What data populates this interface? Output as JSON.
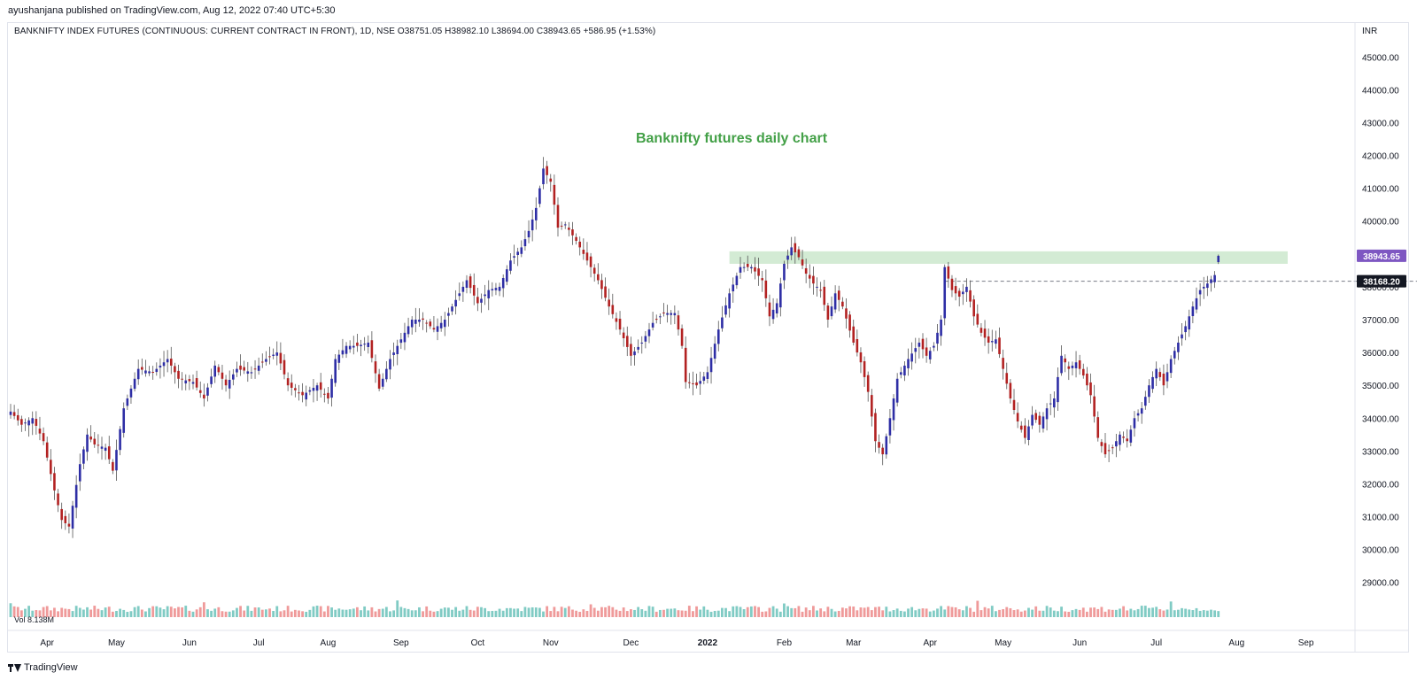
{
  "header": {
    "published": "ayushanjana published on TradingView.com, Aug 12, 2022 07:40 UTC+5:30"
  },
  "legend": {
    "text": "BANKNIFTY INDEX FUTURES (CONTINUOUS: CURRENT CONTRACT IN FRONT), 1D, NSE  O38751.05  H38982.10  L38694.00  C38943.65  +586.95 (+1.53%)"
  },
  "footer": {
    "brand": "TradingView"
  },
  "chart_data": {
    "type": "candlestick",
    "title": "Banknifty futures daily chart",
    "currency_label": "INR",
    "ylim": [
      28400,
      45600
    ],
    "y_ticks": [
      29000,
      30000,
      31000,
      32000,
      33000,
      34000,
      35000,
      36000,
      37000,
      38000,
      39000,
      40000,
      41000,
      42000,
      43000,
      44000,
      45000
    ],
    "y_tick_labels": [
      "29000.00",
      "30000.00",
      "31000.00",
      "32000.00",
      "33000.00",
      "34000.00",
      "35000.00",
      "36000.00",
      "37000.00",
      "38000.00",
      "39000.00",
      "40000.00",
      "41000.00",
      "42000.00",
      "43000.00",
      "44000.00",
      "45000.00"
    ],
    "x_labels": [
      "Apr",
      "May",
      "Jun",
      "Jul",
      "Aug",
      "Sep",
      "Oct",
      "Nov",
      "Dec",
      "2022",
      "Feb",
      "Mar",
      "Apr",
      "May",
      "Jun",
      "Jul",
      "Aug",
      "Sep"
    ],
    "x_label_bar_index": [
      10,
      29,
      49,
      68,
      87,
      107,
      128,
      148,
      170,
      191,
      212,
      231,
      252,
      272,
      293,
      314,
      336,
      355
    ],
    "volume_label": "Vol  8.138M",
    "last_price": {
      "value": 38943.65,
      "label": "38943.65",
      "color": "#7e57c2"
    },
    "crosshair_price": {
      "value": 38168.2,
      "label": "38168.20"
    },
    "resistance_zone": {
      "low": 38700,
      "high": 39080,
      "start_bar": 197,
      "end_bar": 350,
      "color": "#c8e6c9"
    },
    "crosshair_level": {
      "value": 38168.2,
      "start_bar": 256
    },
    "colors": {
      "up": "#2e2ea5",
      "down": "#b22222",
      "vol_up": "#80cbc4",
      "vol_down": "#ef9a9a",
      "title": "#43a047"
    },
    "anchors": [
      [
        0,
        34200
      ],
      [
        3,
        33800
      ],
      [
        6,
        34000
      ],
      [
        9,
        33300
      ],
      [
        12,
        31800
      ],
      [
        14,
        30900
      ],
      [
        16,
        30700
      ],
      [
        19,
        32600
      ],
      [
        21,
        33500
      ],
      [
        23,
        33200
      ],
      [
        26,
        33100
      ],
      [
        28,
        32400
      ],
      [
        31,
        34300
      ],
      [
        35,
        35500
      ],
      [
        39,
        35400
      ],
      [
        43,
        35800
      ],
      [
        46,
        35200
      ],
      [
        50,
        35100
      ],
      [
        53,
        34600
      ],
      [
        56,
        35600
      ],
      [
        59,
        35000
      ],
      [
        62,
        35500
      ],
      [
        66,
        35400
      ],
      [
        70,
        35800
      ],
      [
        73,
        36000
      ],
      [
        76,
        35000
      ],
      [
        80,
        34700
      ],
      [
        84,
        35000
      ],
      [
        87,
        34600
      ],
      [
        89,
        35800
      ],
      [
        92,
        36200
      ],
      [
        95,
        36200
      ],
      [
        98,
        36300
      ],
      [
        101,
        34900
      ],
      [
        104,
        35800
      ],
      [
        107,
        36400
      ],
      [
        110,
        37000
      ],
      [
        113,
        37000
      ],
      [
        116,
        36700
      ],
      [
        119,
        37000
      ],
      [
        122,
        37600
      ],
      [
        125,
        38200
      ],
      [
        128,
        37500
      ],
      [
        131,
        37900
      ],
      [
        134,
        38000
      ],
      [
        137,
        38800
      ],
      [
        140,
        39200
      ],
      [
        142,
        39700
      ],
      [
        144,
        40400
      ],
      [
        146,
        41600
      ],
      [
        148,
        41200
      ],
      [
        150,
        39800
      ],
      [
        152,
        39900
      ],
      [
        155,
        39400
      ],
      [
        158,
        38800
      ],
      [
        161,
        38200
      ],
      [
        164,
        37400
      ],
      [
        167,
        36700
      ],
      [
        170,
        35900
      ],
      [
        173,
        36300
      ],
      [
        176,
        36900
      ],
      [
        179,
        37200
      ],
      [
        182,
        37200
      ],
      [
        184,
        36200
      ],
      [
        185,
        35100
      ],
      [
        188,
        35000
      ],
      [
        191,
        35400
      ],
      [
        194,
        36700
      ],
      [
        197,
        37800
      ],
      [
        200,
        38600
      ],
      [
        203,
        38600
      ],
      [
        206,
        38200
      ],
      [
        208,
        37100
      ],
      [
        210,
        37500
      ],
      [
        212,
        38700
      ],
      [
        214,
        39200
      ],
      [
        216,
        38900
      ],
      [
        218,
        38400
      ],
      [
        220,
        38100
      ],
      [
        222,
        37900
      ],
      [
        224,
        37000
      ],
      [
        226,
        37800
      ],
      [
        228,
        37400
      ],
      [
        231,
        36300
      ],
      [
        233,
        35700
      ],
      [
        235,
        34800
      ],
      [
        237,
        33300
      ],
      [
        239,
        32900
      ],
      [
        241,
        34000
      ],
      [
        243,
        35200
      ],
      [
        246,
        35800
      ],
      [
        249,
        36300
      ],
      [
        251,
        35900
      ],
      [
        253,
        36200
      ],
      [
        255,
        37000
      ],
      [
        256,
        38600
      ],
      [
        258,
        37900
      ],
      [
        260,
        37700
      ],
      [
        262,
        38000
      ],
      [
        264,
        37100
      ],
      [
        266,
        36600
      ],
      [
        268,
        36300
      ],
      [
        270,
        36400
      ],
      [
        272,
        35500
      ],
      [
        274,
        34600
      ],
      [
        276,
        33900
      ],
      [
        278,
        33400
      ],
      [
        280,
        34100
      ],
      [
        282,
        33800
      ],
      [
        284,
        34300
      ],
      [
        286,
        34600
      ],
      [
        288,
        35900
      ],
      [
        290,
        35500
      ],
      [
        292,
        35700
      ],
      [
        294,
        35300
      ],
      [
        296,
        34700
      ],
      [
        298,
        33400
      ],
      [
        300,
        32900
      ],
      [
        302,
        33100
      ],
      [
        304,
        33500
      ],
      [
        306,
        33300
      ],
      [
        308,
        34000
      ],
      [
        310,
        34300
      ],
      [
        312,
        35000
      ],
      [
        314,
        35500
      ],
      [
        316,
        35000
      ],
      [
        318,
        35800
      ],
      [
        320,
        36300
      ],
      [
        322,
        36800
      ],
      [
        324,
        37400
      ],
      [
        326,
        37900
      ],
      [
        328,
        38100
      ],
      [
        330,
        38356.7
      ],
      [
        331,
        38943.65
      ]
    ]
  }
}
